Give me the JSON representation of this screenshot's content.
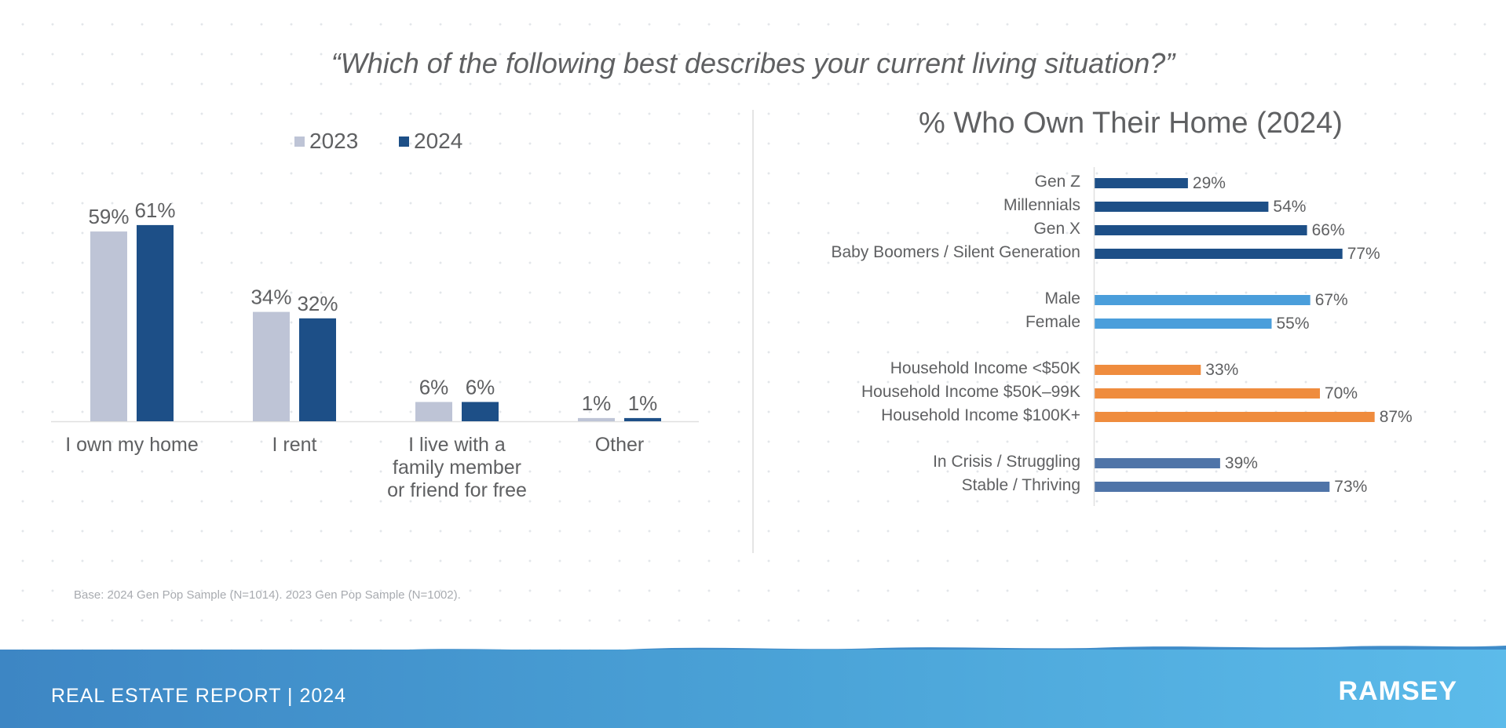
{
  "question": "“Which of the following best describes your current living situation?”",
  "legend": [
    {
      "label": "2023",
      "color": "#bec4d6"
    },
    {
      "label": "2024",
      "color": "#1d4f87"
    }
  ],
  "base_note": "Base: 2024 Gen Pop Sample (N=1014). 2023 Gen Pop Sample (N=1002).",
  "footer": {
    "title": "REAL ESTATE REPORT | 2024",
    "logo": "RAMSEY"
  },
  "chart_data": [
    {
      "type": "bar",
      "title": "",
      "categories": [
        "I own my home",
        "I rent",
        "I live with a family member or friend for free",
        "Other"
      ],
      "category_lines": [
        [
          "I own my home"
        ],
        [
          "I rent"
        ],
        [
          "I live with a",
          "family member",
          "or friend for free"
        ],
        [
          "Other"
        ]
      ],
      "series": [
        {
          "name": "2023",
          "values": [
            59,
            34,
            6,
            1
          ],
          "labels": [
            "59%",
            "34%",
            "6%",
            "1%"
          ],
          "color": "#bec4d6"
        },
        {
          "name": "2024",
          "values": [
            61,
            32,
            6,
            1
          ],
          "labels": [
            "61%",
            "32%",
            "6%",
            "1%"
          ],
          "color": "#1d4f87"
        }
      ],
      "ylim": [
        0,
        100
      ],
      "grid": false,
      "legend_position": "top"
    },
    {
      "type": "bar",
      "orientation": "horizontal",
      "title": "% Who Own Their Home (2024)",
      "groups": [
        {
          "color": "#1d4f87",
          "items": [
            {
              "label": "Gen Z",
              "value": 29,
              "text": "29%"
            },
            {
              "label": "Millennials",
              "value": 54,
              "text": "54%"
            },
            {
              "label": "Gen X",
              "value": 66,
              "text": "66%"
            },
            {
              "label": "Baby Boomers / Silent Generation",
              "value": 77,
              "text": "77%"
            }
          ]
        },
        {
          "color": "#4a9edb",
          "items": [
            {
              "label": "Male",
              "value": 67,
              "text": "67%"
            },
            {
              "label": "Female",
              "value": 55,
              "text": "55%"
            }
          ]
        },
        {
          "color": "#ef8c3e",
          "items": [
            {
              "label": "Household Income <$50K",
              "value": 33,
              "text": "33%"
            },
            {
              "label": "Household Income $50K–99K",
              "value": 70,
              "text": "70%"
            },
            {
              "label": "Household Income $100K+",
              "value": 87,
              "text": "87%"
            }
          ]
        },
        {
          "color": "#4f74a8",
          "items": [
            {
              "label": "In Crisis / Struggling",
              "value": 39,
              "text": "39%"
            },
            {
              "label": "Stable / Thriving",
              "value": 73,
              "text": "73%"
            }
          ]
        }
      ],
      "xlim": [
        0,
        100
      ],
      "grid": false
    }
  ]
}
